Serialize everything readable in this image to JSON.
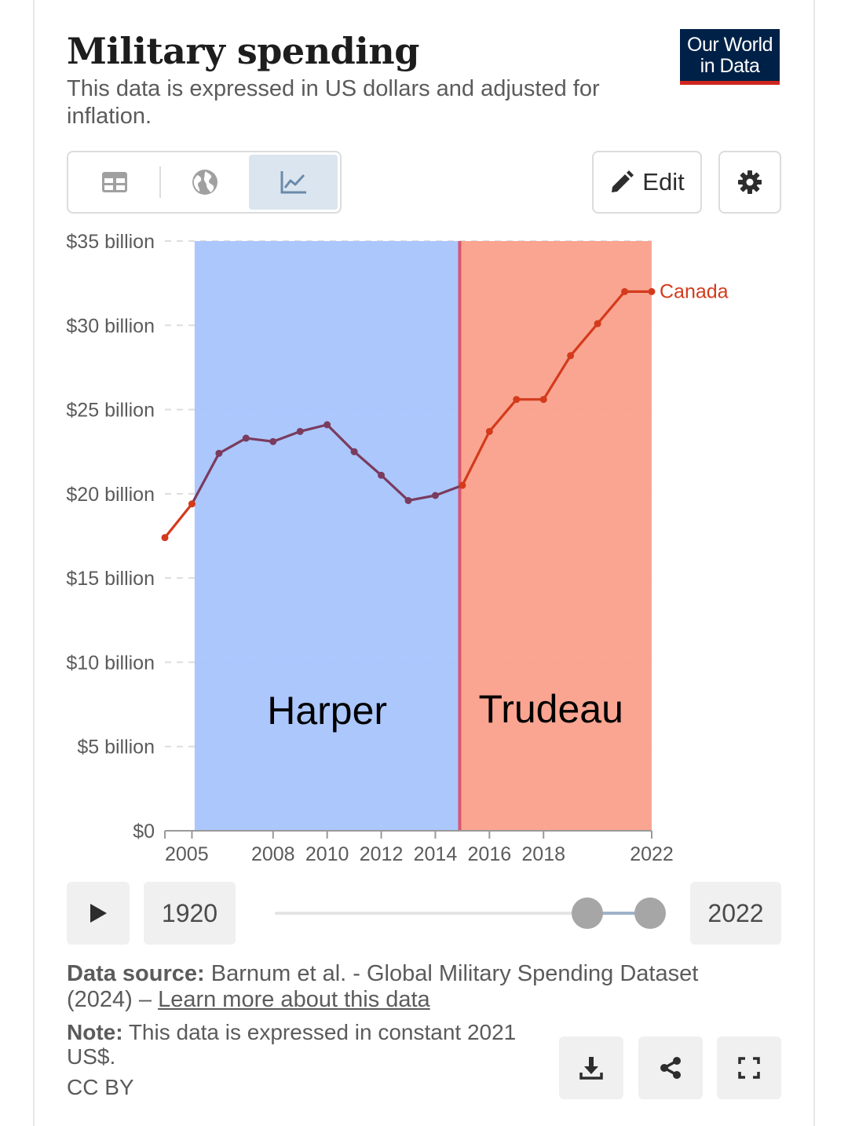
{
  "header": {
    "title": "Military spending",
    "subtitle": "This data is expressed in US dollars and adjusted for inflation.",
    "logo_line1": "Our World",
    "logo_line2": "in Data"
  },
  "toolbar": {
    "tabs": [
      {
        "icon": "table-icon",
        "active": false
      },
      {
        "icon": "globe-icon",
        "active": false
      },
      {
        "icon": "line-chart-icon",
        "active": true
      }
    ],
    "edit_label": "Edit",
    "settings_icon": "gear-icon"
  },
  "colors": {
    "harper_band": "#a6c4fc",
    "trudeau_band": "#f9a08b",
    "series_line": "#d43a1c",
    "series_line_over_blue": "#7a3b5e",
    "divider": "#d9566f"
  },
  "chart_data": {
    "type": "line",
    "title": "Military spending",
    "xlabel": "",
    "ylabel": "",
    "ylim": [
      0,
      35
    ],
    "xlim": [
      2004,
      2022
    ],
    "y_ticks": [
      {
        "value": 0,
        "label": "$0"
      },
      {
        "value": 5,
        "label": "$5 billion"
      },
      {
        "value": 10,
        "label": "$10 billion"
      },
      {
        "value": 15,
        "label": "$15 billion"
      },
      {
        "value": 20,
        "label": "$20 billion"
      },
      {
        "value": 25,
        "label": "$25 billion"
      },
      {
        "value": 30,
        "label": "$30 billion"
      },
      {
        "value": 35,
        "label": "$35 billion"
      }
    ],
    "x_ticks": [
      {
        "value": 2005,
        "label": "2005"
      },
      {
        "value": 2008,
        "label": "2008"
      },
      {
        "value": 2010,
        "label": "2010"
      },
      {
        "value": 2012,
        "label": "2012"
      },
      {
        "value": 2014,
        "label": "2014"
      },
      {
        "value": 2016,
        "label": "2016"
      },
      {
        "value": 2018,
        "label": "2018"
      },
      {
        "value": 2022,
        "label": "2022"
      }
    ],
    "grid": "horizontal-dashed",
    "series": [
      {
        "name": "Canada",
        "x": [
          2004,
          2005,
          2006,
          2007,
          2008,
          2009,
          2010,
          2011,
          2012,
          2013,
          2014,
          2015,
          2016,
          2017,
          2018,
          2019,
          2020,
          2021,
          2022
        ],
        "values": [
          17.4,
          19.4,
          22.4,
          23.3,
          23.1,
          23.7,
          24.1,
          22.5,
          21.1,
          19.6,
          19.9,
          20.5,
          23.7,
          25.6,
          25.6,
          28.2,
          30.1,
          32.0,
          32.0
        ]
      }
    ],
    "bands": [
      {
        "label": "Harper",
        "from": 2005,
        "to": 2014
      },
      {
        "label": "Trudeau",
        "from": 2014,
        "to": 2022
      }
    ]
  },
  "timeline": {
    "start_year": "1920",
    "end_year": "2022"
  },
  "footer": {
    "source_label": "Data source:",
    "source_text": "Barnum et al. - Global Military Spending Dataset (2024) –",
    "learn_more": "Learn more about this data",
    "note_label": "Note:",
    "note_text": "This data is expressed in constant 2021 US$.",
    "license": "CC BY"
  }
}
